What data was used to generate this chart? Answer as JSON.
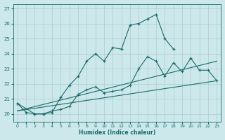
{
  "xlabel": "Humidex (Indice chaleur)",
  "bg_color": "#cce8ea",
  "grid_color": "#aaccce",
  "line_color": "#1a6b6b",
  "xlim": [
    -0.5,
    23.5
  ],
  "ylim": [
    19.5,
    27.3
  ],
  "xticks": [
    0,
    1,
    2,
    3,
    4,
    5,
    6,
    7,
    8,
    9,
    10,
    11,
    12,
    13,
    14,
    15,
    16,
    17,
    18,
    19,
    20,
    21,
    22,
    23
  ],
  "yticks": [
    20,
    21,
    22,
    23,
    24,
    25,
    26,
    27
  ],
  "line1_x": [
    0,
    1,
    2,
    3,
    4,
    5,
    6,
    7,
    8,
    9,
    10,
    11,
    12,
    13,
    14,
    15,
    16,
    17,
    18
  ],
  "line1_y": [
    20.7,
    20.1,
    20.0,
    20.0,
    20.1,
    21.1,
    21.9,
    22.5,
    23.5,
    24.0,
    23.5,
    24.4,
    24.3,
    25.9,
    26.0,
    26.3,
    26.6,
    25.0,
    24.3
  ],
  "line2_x": [
    0,
    2,
    3,
    4,
    5,
    6,
    7,
    8,
    9,
    10,
    11,
    12,
    13,
    14,
    15,
    16,
    17,
    18,
    19,
    20,
    21,
    22,
    23
  ],
  "line2_y": [
    20.7,
    20.0,
    20.0,
    20.2,
    20.3,
    20.5,
    21.3,
    21.6,
    21.8,
    21.4,
    21.5,
    21.6,
    21.9,
    23.0,
    23.8,
    23.5,
    22.5,
    23.4,
    22.8,
    23.7,
    22.9,
    22.9,
    22.2
  ],
  "line3_x": [
    0,
    23
  ],
  "line3_y": [
    20.2,
    23.5
  ],
  "line4_x": [
    0,
    23
  ],
  "line4_y": [
    20.2,
    22.2
  ]
}
